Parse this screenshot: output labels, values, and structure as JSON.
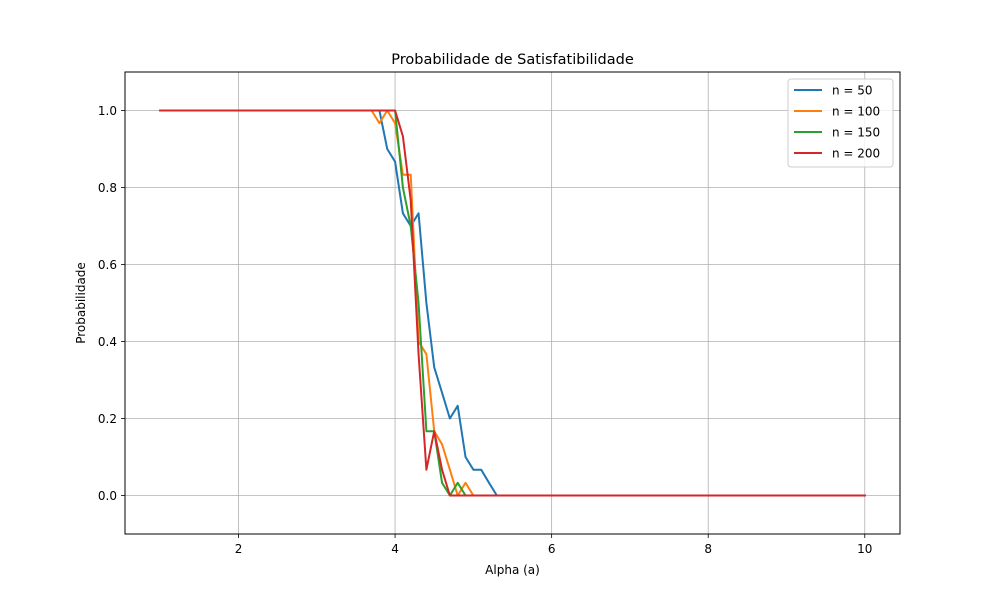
{
  "chart_data": {
    "type": "line",
    "title": "Probabilidade de Satisfatibilidade",
    "xlabel": "Alpha (a)",
    "ylabel": "Probabilidade",
    "xlim": [
      0.55,
      10.45
    ],
    "ylim": [
      -0.1,
      1.1
    ],
    "xticks": [
      2,
      4,
      6,
      8,
      10
    ],
    "xtick_labels": [
      "2",
      "4",
      "6",
      "8",
      "10"
    ],
    "yticks": [
      0.0,
      0.2,
      0.4,
      0.6,
      0.8,
      1.0
    ],
    "ytick_labels": [
      "0.0",
      "0.2",
      "0.4",
      "0.6",
      "0.8",
      "1.0"
    ],
    "grid": true,
    "legend_position": "top-right",
    "series": [
      {
        "name": "n = 50",
        "color": "#1f77b4",
        "x": [
          1.0,
          3.7,
          3.8,
          3.9,
          4.0,
          4.1,
          4.2,
          4.3,
          4.4,
          4.5,
          4.6,
          4.7,
          4.8,
          4.9,
          5.0,
          5.1,
          5.2,
          5.3,
          10.0
        ],
        "y": [
          1.0,
          1.0,
          1.0,
          0.9,
          0.867,
          0.733,
          0.7,
          0.733,
          0.5,
          0.333,
          0.267,
          0.2,
          0.233,
          0.1,
          0.067,
          0.067,
          0.033,
          0.0,
          0.0
        ]
      },
      {
        "name": "n = 100",
        "color": "#ff7f0e",
        "x": [
          1.0,
          3.7,
          3.8,
          3.9,
          4.0,
          4.1,
          4.2,
          4.3,
          4.4,
          4.5,
          4.6,
          4.7,
          4.8,
          4.9,
          5.0,
          10.0
        ],
        "y": [
          1.0,
          1.0,
          0.967,
          1.0,
          0.967,
          0.833,
          0.833,
          0.4,
          0.367,
          0.167,
          0.133,
          0.067,
          0.0,
          0.033,
          0.0,
          0.0
        ]
      },
      {
        "name": "n = 150",
        "color": "#2ca02c",
        "x": [
          1.0,
          3.9,
          4.0,
          4.1,
          4.2,
          4.3,
          4.4,
          4.5,
          4.6,
          4.7,
          4.8,
          4.9,
          10.0
        ],
        "y": [
          1.0,
          1.0,
          1.0,
          0.8,
          0.7,
          0.5,
          0.167,
          0.167,
          0.033,
          0.0,
          0.033,
          0.0,
          0.0
        ]
      },
      {
        "name": "n = 200",
        "color": "#d62728",
        "x": [
          1.0,
          3.9,
          4.0,
          4.1,
          4.2,
          4.3,
          4.4,
          4.5,
          4.6,
          4.7,
          10.0
        ],
        "y": [
          1.0,
          1.0,
          1.0,
          0.933,
          0.767,
          0.367,
          0.067,
          0.167,
          0.067,
          0.0,
          0.0
        ]
      }
    ]
  }
}
